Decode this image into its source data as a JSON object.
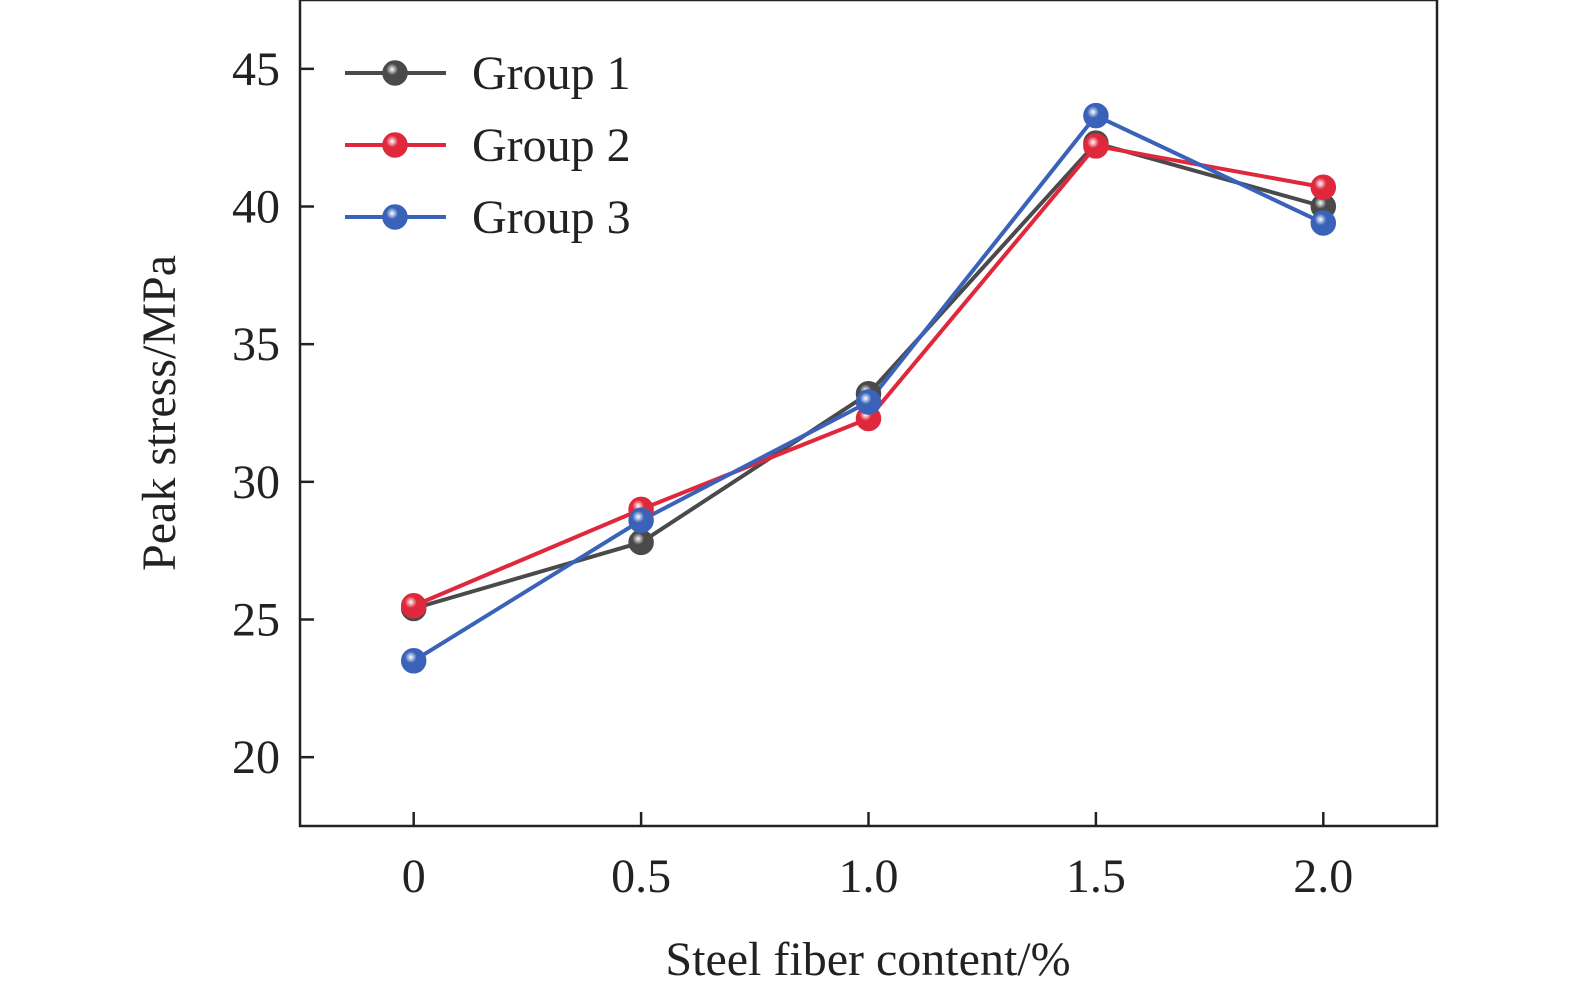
{
  "chart_data": {
    "type": "line",
    "title": "",
    "xlabel": "Steel fiber content/%",
    "ylabel": "Peak stress/MPa",
    "x": [
      0,
      0.5,
      1.0,
      1.5,
      2.0
    ],
    "x_tick_labels": [
      "0",
      "0.5",
      "1.0",
      "1.5",
      "2.0"
    ],
    "y_ticks": [
      20,
      25,
      30,
      35,
      40,
      45
    ],
    "y_tick_labels": [
      "20",
      "25",
      "30",
      "35",
      "40",
      "45"
    ],
    "xlim": [
      -0.25,
      2.25
    ],
    "ylim": [
      17.5,
      47.5
    ],
    "grid": false,
    "legend_position": "top-left",
    "series": [
      {
        "name": "Group 1",
        "color": "#4a4a4a",
        "values": [
          25.4,
          27.8,
          33.2,
          42.3,
          40.0
        ]
      },
      {
        "name": "Group 2",
        "color": "#e0283c",
        "values": [
          25.5,
          29.0,
          32.3,
          42.2,
          40.7
        ]
      },
      {
        "name": "Group 3",
        "color": "#3a62b8",
        "values": [
          23.5,
          28.6,
          32.9,
          43.3,
          39.4
        ]
      }
    ]
  }
}
